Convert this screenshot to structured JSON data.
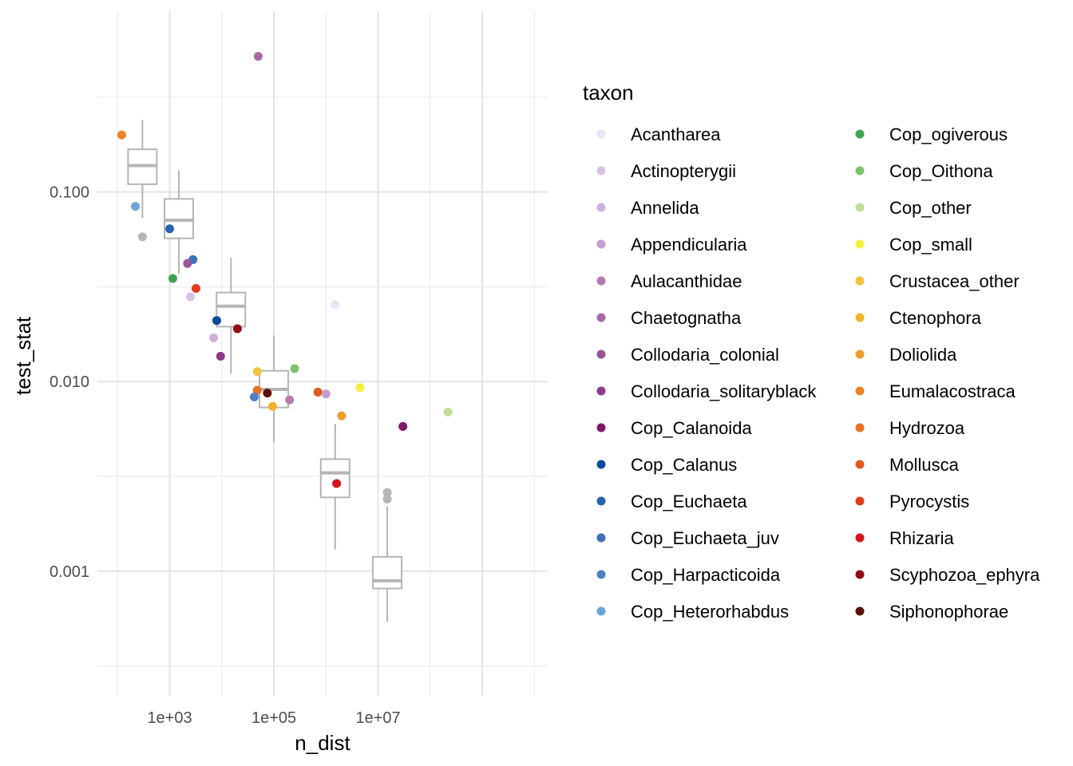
{
  "chart_data": {
    "type": "scatter",
    "xlabel": "n_dist",
    "ylabel": "test_stat",
    "x_scale": "log10",
    "y_scale": "log10",
    "xlim": [
      41,
      18000000000
    ],
    "ylim": [
      0.00022,
      0.9
    ],
    "x_tick_values": [
      1000,
      100000,
      10000000
    ],
    "x_tick_labels": [
      "1e+03",
      "1e+05",
      "1e+07"
    ],
    "y_tick_values": [
      0.1,
      0.01,
      0.001
    ],
    "y_tick_labels": [
      "0.100",
      "0.010",
      "0.001"
    ],
    "grid": true,
    "legend": {
      "title": "taxon",
      "position": "right",
      "items": [
        {
          "name": "Acantharea",
          "color": "#e3e7f8"
        },
        {
          "name": "Actinopterygii",
          "color": "#d6c3e2"
        },
        {
          "name": "Annelida",
          "color": "#cfb0dc"
        },
        {
          "name": "Appendicularia",
          "color": "#c39ecd"
        },
        {
          "name": "Aulacanthidae",
          "color": "#b27cb3"
        },
        {
          "name": "Chaetognatha",
          "color": "#a46aa7"
        },
        {
          "name": "Collodaria_colonial",
          "color": "#9a5599"
        },
        {
          "name": "Collodaria_solitaryblack",
          "color": "#8e3a8a"
        },
        {
          "name": "Cop_Calanoida",
          "color": "#7b1a6a"
        },
        {
          "name": "Cop_Calanus",
          "color": "#0c4aa0"
        },
        {
          "name": "Cop_Euchaeta",
          "color": "#2b62b0"
        },
        {
          "name": "Cop_Euchaeta_juv",
          "color": "#3e6fba"
        },
        {
          "name": "Cop_Harpacticoida",
          "color": "#4d7fc2"
        },
        {
          "name": "Cop_Heterorhabdus",
          "color": "#6da4d8"
        },
        {
          "name": "Cop_ogiverous",
          "color": "#3fa450"
        },
        {
          "name": "Cop_Oithona",
          "color": "#7dc26c"
        },
        {
          "name": "Cop_other",
          "color": "#c2dd95"
        },
        {
          "name": "Cop_small",
          "color": "#f5ee3a"
        },
        {
          "name": "Crustacea_other",
          "color": "#f3c13d"
        },
        {
          "name": "Ctenophora",
          "color": "#efb42c"
        },
        {
          "name": "Doliolida",
          "color": "#ee9d2d"
        },
        {
          "name": "Eumalacostraca",
          "color": "#ec8425"
        },
        {
          "name": "Hydrozoa",
          "color": "#ea6f23"
        },
        {
          "name": "Mollusca",
          "color": "#e25a1c"
        },
        {
          "name": "Pyrocystis",
          "color": "#e03c1c"
        },
        {
          "name": "Rhizaria",
          "color": "#d7141a"
        },
        {
          "name": "Scyphozoa_ephyra",
          "color": "#960b0f"
        },
        {
          "name": "Siphonophorae",
          "color": "#5c1208"
        }
      ]
    },
    "boxplots": [
      {
        "x": 300,
        "whisker_low": 0.073,
        "q1": 0.11,
        "median": 0.138,
        "q3": 0.168,
        "whisker_high": 0.24
      },
      {
        "x": 1500,
        "whisker_low": 0.037,
        "q1": 0.057,
        "median": 0.071,
        "q3": 0.092,
        "whisker_high": 0.13
      },
      {
        "x": 15000,
        "whisker_low": 0.011,
        "q1": 0.0195,
        "median": 0.025,
        "q3": 0.0295,
        "whisker_high": 0.045
      },
      {
        "x": 100000,
        "whisker_low": 0.0048,
        "q1": 0.0073,
        "median": 0.0091,
        "q3": 0.0114,
        "whisker_high": 0.0175
      },
      {
        "x": 1500000,
        "whisker_low": 0.0013,
        "q1": 0.00245,
        "median": 0.0033,
        "q3": 0.0039,
        "whisker_high": 0.006
      },
      {
        "x": 15000000,
        "whisker_low": 0.00054,
        "q1": 0.00081,
        "median": 0.00089,
        "q3": 0.00119,
        "whisker_high": 0.0022
      },
      {
        "outlier": true,
        "x": 300,
        "y": 0.058
      },
      {
        "outlier": true,
        "x": 15000000,
        "y": 0.0026
      },
      {
        "outlier": true,
        "x": 15000000,
        "y": 0.0024
      }
    ],
    "series": [
      {
        "taxon": "Eumalacostraca",
        "x": 120,
        "y": 0.2
      },
      {
        "taxon": "Cop_Heterorhabdus",
        "x": 220,
        "y": 0.084
      },
      {
        "taxon": "Cop_Euchaeta",
        "x": 1000,
        "y": 0.064
      },
      {
        "taxon": "Cop_Euchaeta_juv",
        "x": 2800,
        "y": 0.044
      },
      {
        "taxon": "Collodaria_colonial",
        "x": 2200,
        "y": 0.042
      },
      {
        "taxon": "Cop_ogiverous",
        "x": 1150,
        "y": 0.035
      },
      {
        "taxon": "Pyrocystis",
        "x": 3200,
        "y": 0.031
      },
      {
        "taxon": "Actinopterygii",
        "x": 2500,
        "y": 0.028
      },
      {
        "taxon": "Cop_Calanus",
        "x": 8000,
        "y": 0.021
      },
      {
        "taxon": "Scyphozoa_ephyra",
        "x": 20000,
        "y": 0.019
      },
      {
        "taxon": "Annelida",
        "x": 7000,
        "y": 0.017
      },
      {
        "taxon": "Collodaria_solitaryblack",
        "x": 9500,
        "y": 0.0136
      },
      {
        "taxon": "Chaetognatha",
        "x": 50000,
        "y": 0.52
      },
      {
        "taxon": "Acantharea",
        "x": 1500000,
        "y": 0.0255
      },
      {
        "taxon": "Cop_Oithona",
        "x": 250000,
        "y": 0.0117
      },
      {
        "taxon": "Crustacea_other",
        "x": 48000,
        "y": 0.0113
      },
      {
        "taxon": "Hydrozoa",
        "x": 48000,
        "y": 0.009
      },
      {
        "taxon": "Siphonophorae",
        "x": 75000,
        "y": 0.0087
      },
      {
        "taxon": "Cop_Harpacticoida",
        "x": 42000,
        "y": 0.0083
      },
      {
        "taxon": "Aulacanthidae",
        "x": 200000,
        "y": 0.008
      },
      {
        "taxon": "Ctenophora",
        "x": 95000,
        "y": 0.0074
      },
      {
        "taxon": "Mollusca",
        "x": 700000,
        "y": 0.0088
      },
      {
        "taxon": "Appendicularia",
        "x": 1000000,
        "y": 0.0086
      },
      {
        "taxon": "Cop_small",
        "x": 4500000,
        "y": 0.0093
      },
      {
        "taxon": "Doliolida",
        "x": 2000000,
        "y": 0.0066
      },
      {
        "taxon": "Cop_Calanoida",
        "x": 30000000,
        "y": 0.0058
      },
      {
        "taxon": "Cop_other",
        "x": 220000000,
        "y": 0.0069
      },
      {
        "taxon": "Rhizaria",
        "x": 1600000,
        "y": 0.0029
      }
    ]
  }
}
